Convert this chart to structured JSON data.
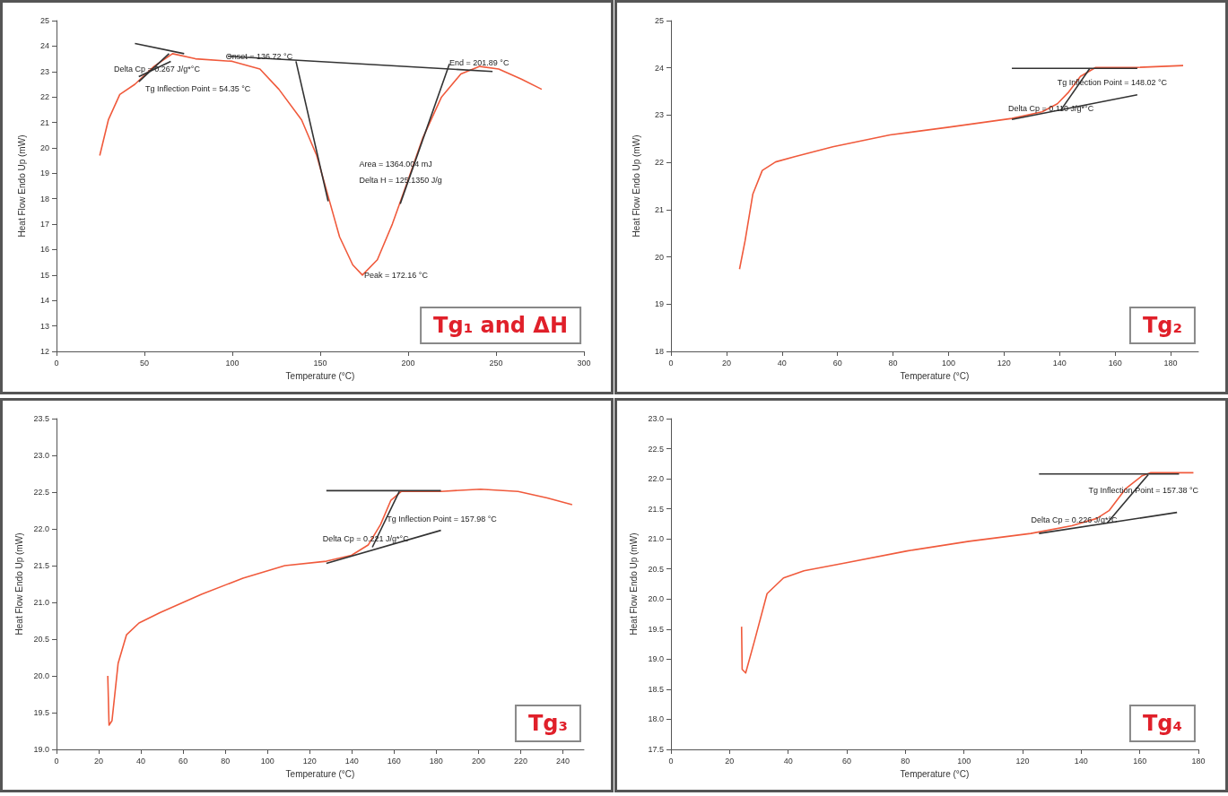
{
  "chart_data": [
    {
      "type": "line",
      "title": "Tg₁ and ΔH",
      "xlabel": "Temperature (°C)",
      "ylabel": "Heat Flow Endo Up (mW)",
      "xlim": [
        0,
        300
      ],
      "xticks": [
        0,
        50,
        100,
        150,
        200,
        250,
        300
      ],
      "ylim": [
        12,
        25
      ],
      "yticks": [
        12,
        13,
        14,
        15,
        16,
        17,
        18,
        19,
        20,
        21,
        22,
        23,
        24,
        25
      ],
      "grid": false,
      "marker": "none",
      "series": [
        {
          "color": "#f05a3c",
          "x": [
            24.6,
            29.5,
            36,
            44.6,
            55.4,
            66,
            79,
            100,
            115.7,
            126.5,
            139.4,
            148,
            154.5,
            161,
            168.5,
            174,
            182.5,
            191,
            199.8,
            208.4,
            219,
            230,
            240.7,
            251.5,
            264.4,
            276
          ],
          "values": [
            19.7,
            21.1,
            22.1,
            22.5,
            23.2,
            23.7,
            23.5,
            23.4,
            23.1,
            22.3,
            21.1,
            19.7,
            18.1,
            16.5,
            15.4,
            15.0,
            15.6,
            17.0,
            18.7,
            20.4,
            22.0,
            22.9,
            23.2,
            23.1,
            22.7,
            22.3
          ]
        },
        {
          "color": "#333333",
          "x": [
            97.4,
            248
          ],
          "values": [
            23.6,
            23.0
          ]
        },
        {
          "color": "#333333",
          "x": [
            136.2,
            154.5
          ],
          "values": [
            23.4,
            17.9
          ]
        },
        {
          "color": "#333333",
          "x": [
            223.5,
            195.5
          ],
          "values": [
            23.3,
            17.8
          ]
        },
        {
          "color": "#333333",
          "x": [
            44.6,
            72.6
          ],
          "values": [
            24.1,
            23.7
          ]
        },
        {
          "color": "#333333",
          "x": [
            46.8,
            64
          ],
          "values": [
            22.6,
            23.7
          ]
        },
        {
          "color": "#333333",
          "x": [
            46.8,
            65
          ],
          "values": [
            22.8,
            23.4
          ]
        }
      ],
      "annotations": [
        "Delta Cp = 0.267 J/g*°C",
        "Tg Inflection Point = 54.35 °C",
        {
          "text": "Onset = 136.72 °C",
          "x": 96.3,
          "y": 23.6
        },
        {
          "text": "End = 201.89 °C",
          "x": 223.5,
          "y": 23.35
        },
        "Area = 1364.004 mJ",
        "Delta H = 125.1350 J/g",
        {
          "text": "Peak = 172.16 °C",
          "x": 175,
          "y": 15.0
        }
      ]
    },
    {
      "type": "line",
      "title": "Tg₂",
      "xlabel": "Temperature (°C)",
      "ylabel": "Heat Flow Endo Up (mW)",
      "xlim": [
        0,
        190
      ],
      "xticks": [
        0,
        20,
        40,
        60,
        80,
        100,
        120,
        140,
        160,
        180
      ],
      "ylim": [
        18,
        25
      ],
      "yticks": [
        18,
        19,
        20,
        21,
        22,
        23,
        24,
        25
      ],
      "grid": false,
      "marker": "none",
      "series": [
        {
          "color": "#f05a3c",
          "x": [
            24.7,
            26.7,
            29.5,
            32.9,
            37.7,
            44.6,
            58.3,
            78.9,
            99.5,
            122.8,
            133.7,
            139.2,
            143.3,
            147.5,
            153,
            168,
            184.5
          ],
          "values": [
            19.74,
            20.34,
            21.33,
            21.83,
            22.01,
            22.12,
            22.33,
            22.58,
            22.74,
            22.93,
            23.07,
            23.24,
            23.49,
            23.82,
            24.01,
            24.01,
            24.05
          ]
        },
        {
          "color": "#333333",
          "x": [
            122.8,
            168
          ],
          "values": [
            23.99,
            23.99
          ]
        },
        {
          "color": "#333333",
          "x": [
            122.8,
            168
          ],
          "values": [
            22.91,
            23.43
          ]
        },
        {
          "color": "#333333",
          "x": [
            140.6,
            150.9
          ],
          "values": [
            23.12,
            23.99
          ]
        }
      ],
      "annotations": [
        "Tg Inflection Point = 148.02 °C",
        "Delta Cp = 0.110 J/g*°C"
      ]
    },
    {
      "type": "line",
      "title": "Tg₃",
      "xlabel": "Temperature (°C)",
      "ylabel": "Heat Flow Endo Up (mW)",
      "xlim": [
        0,
        250
      ],
      "xticks": [
        0,
        20,
        40,
        60,
        80,
        100,
        120,
        140,
        160,
        180,
        200,
        220,
        240
      ],
      "ylim": [
        19,
        23.5
      ],
      "yticks": [
        {
          "value": 19,
          "label": "19.0"
        },
        19.5,
        {
          "value": 20,
          "label": "20.0"
        },
        20.5,
        {
          "value": 21,
          "label": "21.0"
        },
        21.5,
        {
          "value": 22,
          "label": "22.0"
        },
        22.5,
        {
          "value": 23,
          "label": "23.0"
        },
        23.5
      ],
      "grid": false,
      "marker": "none",
      "series": [
        {
          "color": "#f05a3c",
          "x": [
            24.3,
            24.9,
            26.3,
            29.2,
            33.2,
            39.1,
            49,
            68.7,
            88.4,
            108.2,
            127.9,
            139.8,
            147.7,
            153.6,
            158.5,
            163.5,
            182.2,
            201,
            218.8,
            232.6,
            244.4
          ],
          "values": [
            20.0,
            19.33,
            19.39,
            20.17,
            20.56,
            20.72,
            20.86,
            21.11,
            21.33,
            21.5,
            21.56,
            21.64,
            21.78,
            22.06,
            22.39,
            22.51,
            22.51,
            22.54,
            22.51,
            22.42,
            22.33
          ]
        },
        {
          "color": "#333333",
          "x": [
            127.9,
            182.2
          ],
          "values": [
            22.52,
            22.52
          ]
        },
        {
          "color": "#333333",
          "x": [
            127.9,
            182.2
          ],
          "values": [
            21.53,
            21.98
          ]
        },
        {
          "color": "#333333",
          "x": [
            149.7,
            162.5
          ],
          "values": [
            21.75,
            22.51
          ]
        }
      ],
      "annotations": [
        {
          "text": "Tg Inflection Point = 157.98 °C",
          "x": 156.6,
          "y": 22.13
        },
        "Delta Cp = 0.221 J/g*°C"
      ]
    },
    {
      "type": "line",
      "title": "Tg₄",
      "xlabel": "Temperature (°C)",
      "ylabel": "Heat Flow Endo Up (mW)",
      "xlim": [
        0,
        180
      ],
      "xticks": [
        0,
        20,
        40,
        60,
        80,
        100,
        120,
        140,
        160,
        180
      ],
      "ylim": [
        17.5,
        23
      ],
      "yticks": [
        17.5,
        {
          "value": 18,
          "label": "18.0"
        },
        18.5,
        {
          "value": 19,
          "label": "19.0"
        },
        19.5,
        {
          "value": 20,
          "label": "20.0"
        },
        20.5,
        {
          "value": 21,
          "label": "21.0"
        },
        21.5,
        {
          "value": 22,
          "label": "22.0"
        },
        22.5,
        {
          "value": 23,
          "label": "23.0"
        }
      ],
      "grid": false,
      "marker": "none",
      "series": [
        {
          "color": "#f05a3c",
          "x": [
            24.1,
            24.3,
            25.5,
            28.6,
            32.8,
            38.4,
            45.4,
            59.5,
            80.6,
            101.7,
            122.8,
            136.8,
            145.3,
            149.5,
            155.1,
            160.8,
            163.6,
            178.3
          ],
          "values": [
            19.54,
            18.83,
            18.77,
            19.32,
            20.09,
            20.35,
            20.47,
            20.6,
            20.8,
            20.96,
            21.09,
            21.22,
            21.34,
            21.47,
            21.83,
            22.05,
            22.1,
            22.1
          ]
        },
        {
          "color": "#333333",
          "x": [
            125.6,
            173.4
          ],
          "values": [
            22.08,
            22.08
          ]
        },
        {
          "color": "#333333",
          "x": [
            125.6,
            172.7
          ],
          "values": [
            21.09,
            21.44
          ]
        },
        {
          "color": "#333333",
          "x": [
            148.8,
            162.9
          ],
          "values": [
            21.26,
            22.07
          ]
        }
      ],
      "annotations": [
        "Tg Inflection Point = 157.38 °C",
        "Delta Cp = 0.226 J/g*°C"
      ]
    }
  ]
}
